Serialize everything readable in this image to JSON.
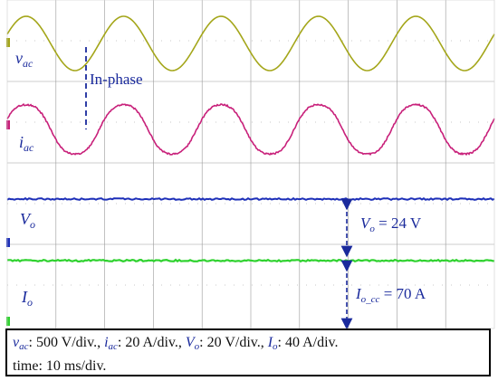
{
  "chart_data": {
    "type": "line",
    "description_axes": "oscilloscope capture, 10 horizontal divisions",
    "time_per_div_ms": 10,
    "series": [
      {
        "name": "vac",
        "kind": "sine",
        "color": "#a4a61a",
        "cycles_shown": 5,
        "phase_deg": 0
      },
      {
        "name": "iac",
        "kind": "sine",
        "color": "#c8207a",
        "cycles_shown": 5,
        "phase_deg": 0
      },
      {
        "name": "Vo",
        "kind": "dc",
        "color": "#1d2fb8",
        "value": 24,
        "unit": "V"
      },
      {
        "name": "Io",
        "kind": "dc",
        "color": "#2fd22f",
        "value": 70,
        "unit": "A"
      }
    ]
  },
  "labels": {
    "vac_main": "v",
    "vac_sub": "ac",
    "iac_main": "i",
    "iac_sub": "ac",
    "vo_main": "V",
    "vo_sub": "o",
    "io_main": "I",
    "io_sub": "o",
    "inphase": "In-phase",
    "vo_annot_main": "V",
    "vo_annot_sub": "o",
    "vo_annot_val": " = 24 V",
    "io_annot_main": "I",
    "io_annot_sub": "o_cc",
    "io_annot_val": " = 70 A"
  },
  "scale": {
    "vac_main": "v",
    "vac_sub": "ac",
    "vac_val": ": 500 V/div., ",
    "iac_main": "i",
    "iac_sub": "ac",
    "iac_val": ": 20 A/div., ",
    "vo_main": "V",
    "vo_sub": "o",
    "vo_val": ": 20 V/div., ",
    "io_main": "I",
    "io_sub": "o",
    "io_val": ": 40 A/div.",
    "time": "time: 10 ms/div."
  },
  "colors": {
    "grid": "#9a9a9a",
    "annotation": "#1a2a9c"
  }
}
